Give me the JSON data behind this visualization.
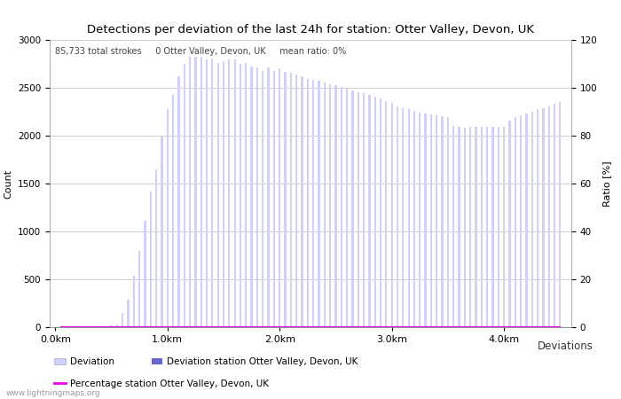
{
  "title": "Detections per deviation of the last 24h for station: Otter Valley, Devon, UK",
  "subtitle": "85,733 total strokes     0 Otter Valley, Devon, UK     mean ratio: 0%",
  "xlabel": "Deviations",
  "ylabel_left": "Count",
  "ylabel_right": "Ratio [%]",
  "watermark": "www.lightningmaps.org",
  "x_tick_labels": [
    "0.0km",
    "1.0km",
    "2.0km",
    "3.0km",
    "4.0km"
  ],
  "x_tick_positions": [
    0.0,
    1.0,
    2.0,
    3.0,
    4.0
  ],
  "ylim_left": [
    0,
    3000
  ],
  "ylim_right": [
    0,
    120
  ],
  "yticks_left": [
    0,
    500,
    1000,
    1500,
    2000,
    2500,
    3000
  ],
  "yticks_right": [
    0,
    20,
    40,
    60,
    80,
    100,
    120
  ],
  "bar_color_light": "#d0d0ff",
  "bar_color_dark": "#6666cc",
  "line_color": "#ee00ee",
  "background_color": "#ffffff",
  "grid_color": "#bbbbbb",
  "deviations": [
    0.05,
    0.1,
    0.15,
    0.2,
    0.25,
    0.3,
    0.35,
    0.4,
    0.45,
    0.5,
    0.55,
    0.6,
    0.65,
    0.7,
    0.75,
    0.8,
    0.85,
    0.9,
    0.95,
    1.0,
    1.05,
    1.1,
    1.15,
    1.2,
    1.25,
    1.3,
    1.35,
    1.4,
    1.45,
    1.5,
    1.55,
    1.6,
    1.65,
    1.7,
    1.75,
    1.8,
    1.85,
    1.9,
    1.95,
    2.0,
    2.05,
    2.1,
    2.15,
    2.2,
    2.25,
    2.3,
    2.35,
    2.4,
    2.45,
    2.5,
    2.55,
    2.6,
    2.65,
    2.7,
    2.75,
    2.8,
    2.85,
    2.9,
    2.95,
    3.0,
    3.05,
    3.1,
    3.15,
    3.2,
    3.25,
    3.3,
    3.35,
    3.4,
    3.45,
    3.5,
    3.55,
    3.6,
    3.65,
    3.7,
    3.75,
    3.8,
    3.85,
    3.9,
    3.95,
    4.0,
    4.05,
    4.1,
    4.15,
    4.2,
    4.25,
    4.3,
    4.35,
    4.4,
    4.45,
    4.5
  ],
  "counts": [
    0,
    0,
    0,
    0,
    0,
    0,
    0,
    0,
    0,
    15,
    30,
    150,
    290,
    540,
    800,
    1110,
    1420,
    1650,
    1990,
    2280,
    2430,
    2620,
    2750,
    2820,
    2820,
    2820,
    2800,
    2810,
    2760,
    2780,
    2800,
    2800,
    2750,
    2760,
    2720,
    2710,
    2680,
    2710,
    2680,
    2700,
    2670,
    2660,
    2640,
    2620,
    2590,
    2580,
    2570,
    2560,
    2540,
    2530,
    2510,
    2490,
    2470,
    2450,
    2440,
    2430,
    2410,
    2390,
    2360,
    2340,
    2310,
    2290,
    2280,
    2260,
    2240,
    2230,
    2220,
    2210,
    2200,
    2190,
    2100,
    2090,
    2080,
    2090,
    2090,
    2090,
    2090,
    2090,
    2090,
    2090,
    2160,
    2190,
    2210,
    2230,
    2250,
    2280,
    2290,
    2310,
    2330,
    2350
  ],
  "station_counts": [
    0,
    0,
    0,
    0,
    0,
    0,
    0,
    0,
    0,
    0,
    0,
    0,
    0,
    0,
    0,
    0,
    0,
    0,
    0,
    0,
    0,
    0,
    0,
    0,
    0,
    0,
    0,
    0,
    0,
    0,
    0,
    0,
    0,
    0,
    0,
    0,
    0,
    0,
    0,
    0,
    0,
    0,
    0,
    0,
    0,
    0,
    0,
    0,
    0,
    0,
    0,
    0,
    0,
    0,
    0,
    0,
    0,
    0,
    0,
    0,
    0,
    0,
    0,
    0,
    0,
    0,
    0,
    0,
    0,
    0,
    0,
    0,
    0,
    0,
    0,
    0,
    0,
    0,
    0,
    0,
    0,
    0,
    0,
    0,
    0,
    0,
    0,
    0,
    0,
    0
  ],
  "legend_deviation": "Deviation",
  "legend_deviation_station": "Deviation station Otter Valley, Devon, UK",
  "legend_percentage": "Percentage station Otter Valley, Devon, UK"
}
